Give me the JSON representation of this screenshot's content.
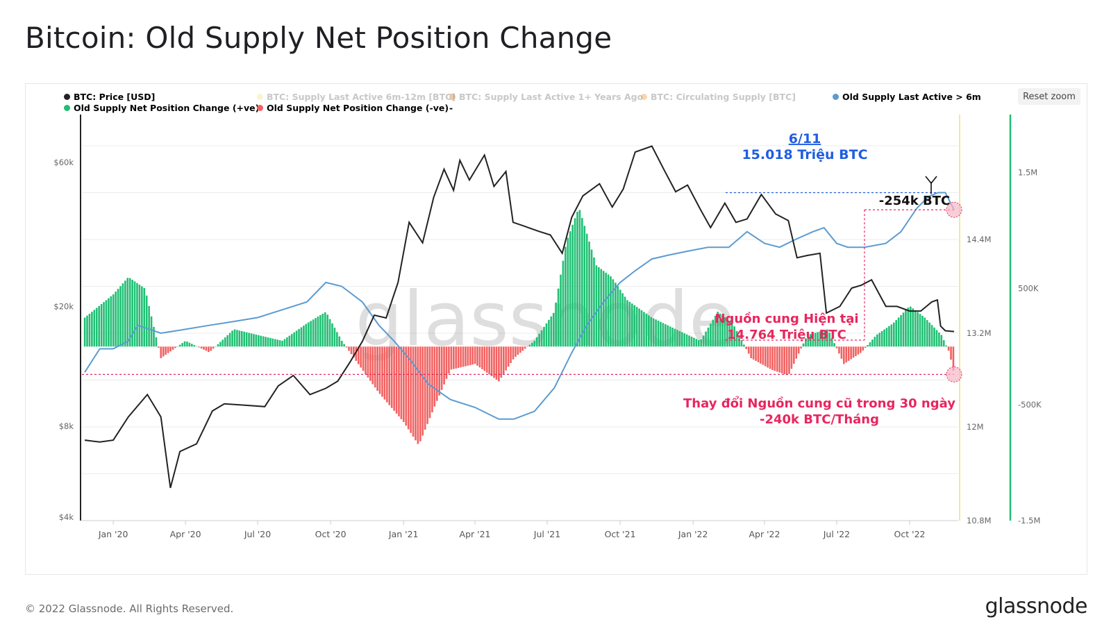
{
  "title": "Bitcoin: Old Supply Net Position Change",
  "reset_zoom": "Reset zoom",
  "footer": {
    "copyright": "© 2022 Glassnode. All Rights Reserved.",
    "logo": "glassnode"
  },
  "watermark": "glassnode",
  "legend": [
    {
      "label": "BTC: Price [USD]",
      "color": "#222222",
      "active": true
    },
    {
      "label": "BTC: Supply Last Active 6m-12m [BTC]",
      "color": "#f7e59a",
      "active": false
    },
    {
      "label": "BTC: Supply Last Active 1+ Years Ago",
      "color": "#c98a52",
      "active": false
    },
    {
      "label": "BTC: Circulating Supply [BTC]",
      "color": "#f2a24a",
      "active": false
    },
    {
      "label": "Old Supply Last Active > 6m",
      "color": "#5b9bd1",
      "active": true
    },
    {
      "label": "Old Supply Net Position Change (+ve)",
      "color": "#1fbf73",
      "active": true
    },
    {
      "label": "Old Supply Net Position Change (-ve)",
      "color": "#f26161",
      "active": true
    },
    {
      "label": "-",
      "color": "",
      "active": true
    }
  ],
  "annotations": {
    "peak_date": "6/11",
    "peak_value": "15.018 Triệu BTC",
    "drop": "-254k BTC",
    "current_label": "Nguồn cung Hiện tại",
    "current_value": "14.764 Triệu BTC",
    "change_label": "Thay đổi Nguồn cung cũ trong 30 ngày",
    "change_value": "-240k BTC/Tháng"
  },
  "colors": {
    "price": "#222222",
    "supply": "#5b9bd1",
    "positive": "#1fbf73",
    "negative": "#f26161",
    "annotation_blue": "#1f5ee0",
    "annotation_pink": "#e8265e",
    "axis_right": "#f7e59a",
    "axis_right2": "#1fbf73"
  },
  "chart_data": {
    "type": "line",
    "x_ticks": [
      "Jan '20",
      "Apr '20",
      "Jul '20",
      "Oct '20",
      "Jan '21",
      "Apr '21",
      "Jul '21",
      "Oct '21",
      "Jan '22",
      "Apr '22",
      "Jul '22",
      "Oct '22"
    ],
    "x_range": [
      "2019-11-26",
      "2022-11-26"
    ],
    "y_price_ticks": [
      "$60k",
      "$20k",
      "$8k",
      "$4k"
    ],
    "y_price_log": true,
    "y_price_range": [
      4000,
      70000
    ],
    "y_supply_ticks": [
      "14.4M",
      "13.2M",
      "12M",
      "10.8M"
    ],
    "y_supply_range": [
      10.8,
      16.0
    ],
    "y_change_ticks": [
      "1.5M",
      "500K",
      "-500K",
      "-1.5M"
    ],
    "y_change_range": [
      -1.5,
      2.0
    ],
    "grid": true,
    "series": [
      {
        "name": "BTC: Price [USD]",
        "axis": "price",
        "x": [
          "2019-11-26",
          "2019-12-15",
          "2020-01-01",
          "2020-01-20",
          "2020-02-13",
          "2020-03-01",
          "2020-03-13",
          "2020-03-25",
          "2020-04-15",
          "2020-05-05",
          "2020-05-20",
          "2020-06-15",
          "2020-07-10",
          "2020-07-27",
          "2020-08-15",
          "2020-09-05",
          "2020-09-25",
          "2020-10-10",
          "2020-10-25",
          "2020-11-10",
          "2020-11-25",
          "2020-12-10",
          "2020-12-25",
          "2021-01-08",
          "2021-01-25",
          "2021-02-08",
          "2021-02-21",
          "2021-03-05",
          "2021-03-13",
          "2021-03-25",
          "2021-04-13",
          "2021-04-25",
          "2021-05-10",
          "2021-05-19",
          "2021-06-01",
          "2021-06-20",
          "2021-07-05",
          "2021-07-20",
          "2021-08-01",
          "2021-08-15",
          "2021-09-05",
          "2021-09-21",
          "2021-10-05",
          "2021-10-20",
          "2021-11-10",
          "2021-11-25",
          "2021-12-10",
          "2021-12-25",
          "2022-01-10",
          "2022-01-23",
          "2022-02-10",
          "2022-02-24",
          "2022-03-10",
          "2022-03-28",
          "2022-04-15",
          "2022-05-01",
          "2022-05-12",
          "2022-05-25",
          "2022-06-10",
          "2022-06-18",
          "2022-07-05",
          "2022-07-20",
          "2022-08-01",
          "2022-08-14",
          "2022-09-01",
          "2022-09-15",
          "2022-10-01",
          "2022-10-15",
          "2022-10-29",
          "2022-11-05",
          "2022-11-09",
          "2022-11-15",
          "2022-11-26"
        ],
        "values": [
          7200,
          7100,
          7200,
          8600,
          10200,
          8600,
          5000,
          6600,
          7000,
          9000,
          9500,
          9400,
          9300,
          10900,
          11800,
          10200,
          10700,
          11300,
          13000,
          15300,
          18700,
          18300,
          24000,
          38000,
          32500,
          46000,
          57000,
          48500,
          61000,
          52500,
          63500,
          50000,
          56000,
          38000,
          37000,
          35500,
          34500,
          30000,
          39500,
          46500,
          51000,
          42700,
          49000,
          65000,
          68000,
          57000,
          48000,
          50500,
          42000,
          36500,
          44000,
          38000,
          39000,
          47000,
          40500,
          38500,
          29000,
          29500,
          30000,
          19000,
          20000,
          23000,
          23500,
          24500,
          20000,
          20000,
          19300,
          19300,
          20700,
          21000,
          17200,
          16600,
          16500
        ]
      },
      {
        "name": "Old Supply Last Active > 6m",
        "axis": "supply",
        "x": [
          "2019-11-26",
          "2019-12-15",
          "2020-01-01",
          "2020-01-20",
          "2020-02-01",
          "2020-03-01",
          "2020-04-01",
          "2020-05-01",
          "2020-06-01",
          "2020-07-01",
          "2020-08-01",
          "2020-09-01",
          "2020-09-25",
          "2020-10-15",
          "2020-11-10",
          "2020-12-01",
          "2020-12-20",
          "2021-01-10",
          "2021-02-01",
          "2021-03-01",
          "2021-04-01",
          "2021-05-01",
          "2021-05-20",
          "2021-06-15",
          "2021-07-10",
          "2021-08-01",
          "2021-08-20",
          "2021-09-10",
          "2021-10-01",
          "2021-10-20",
          "2021-11-10",
          "2021-12-01",
          "2021-12-25",
          "2022-01-20",
          "2022-02-15",
          "2022-03-10",
          "2022-04-01",
          "2022-04-20",
          "2022-05-10",
          "2022-06-01",
          "2022-06-15",
          "2022-07-01",
          "2022-07-15",
          "2022-08-05",
          "2022-09-01",
          "2022-09-20",
          "2022-10-10",
          "2022-10-25",
          "2022-11-06",
          "2022-11-15",
          "2022-11-26"
        ],
        "values": [
          12.7,
          13.0,
          13.0,
          13.1,
          13.3,
          13.2,
          13.25,
          13.3,
          13.35,
          13.4,
          13.5,
          13.6,
          13.85,
          13.8,
          13.6,
          13.3,
          13.1,
          12.85,
          12.55,
          12.35,
          12.25,
          12.1,
          12.1,
          12.2,
          12.5,
          12.95,
          13.3,
          13.6,
          13.85,
          14.0,
          14.15,
          14.2,
          14.25,
          14.3,
          14.3,
          14.5,
          14.35,
          14.3,
          14.4,
          14.5,
          14.55,
          14.35,
          14.3,
          14.3,
          14.35,
          14.5,
          14.8,
          14.95,
          15.0,
          15.0,
          14.78
        ]
      },
      {
        "name": "Old Supply Net Position Change",
        "axis": "change",
        "x": [
          "2019-11-26",
          "2020-01-01",
          "2020-01-20",
          "2020-02-10",
          "2020-03-01",
          "2020-04-01",
          "2020-05-01",
          "2020-06-01",
          "2020-07-01",
          "2020-08-01",
          "2020-09-01",
          "2020-09-25",
          "2020-10-15",
          "2020-11-10",
          "2020-12-01",
          "2021-01-01",
          "2021-01-20",
          "2021-02-10",
          "2021-03-01",
          "2021-04-01",
          "2021-05-01",
          "2021-05-20",
          "2021-06-15",
          "2021-07-10",
          "2021-07-25",
          "2021-08-10",
          "2021-09-01",
          "2021-09-20",
          "2021-10-10",
          "2021-11-10",
          "2021-12-10",
          "2022-01-10",
          "2022-02-01",
          "2022-02-20",
          "2022-03-15",
          "2022-04-10",
          "2022-05-01",
          "2022-05-25",
          "2022-06-20",
          "2022-07-10",
          "2022-08-01",
          "2022-08-20",
          "2022-09-10",
          "2022-10-01",
          "2022-10-20",
          "2022-11-10",
          "2022-11-20",
          "2022-11-26"
        ],
        "values": [
          0.25,
          0.45,
          0.6,
          0.5,
          -0.1,
          0.05,
          -0.05,
          0.15,
          0.1,
          0.05,
          0.2,
          0.3,
          0.05,
          -0.2,
          -0.4,
          -0.65,
          -0.85,
          -0.5,
          -0.2,
          -0.15,
          -0.3,
          -0.1,
          0.05,
          0.3,
          0.9,
          1.2,
          0.7,
          0.6,
          0.4,
          0.25,
          0.15,
          0.05,
          0.3,
          0.2,
          -0.1,
          -0.2,
          -0.25,
          0.1,
          0.15,
          -0.15,
          -0.05,
          0.1,
          0.2,
          0.35,
          0.25,
          0.1,
          -0.05,
          -0.24
        ]
      }
    ]
  }
}
